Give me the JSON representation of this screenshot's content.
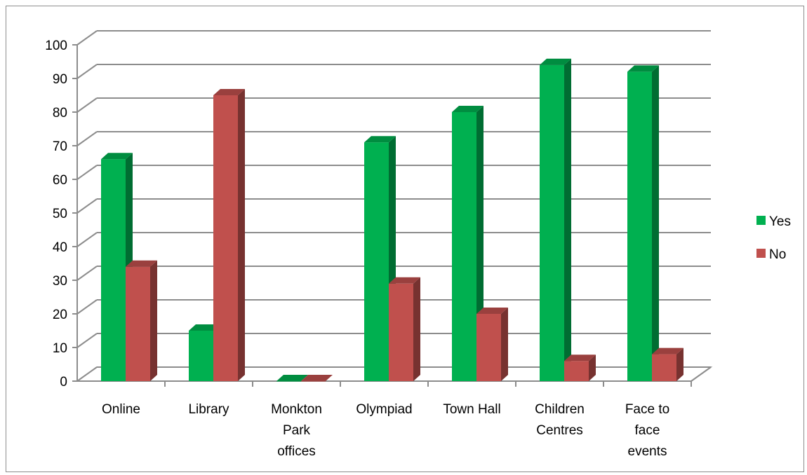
{
  "chart_data": {
    "type": "bar",
    "title": "",
    "xlabel": "",
    "ylabel": "",
    "categories": [
      "Online",
      "Library",
      "Monkton Park offices",
      "Olympiad",
      "Town Hall",
      "Children Centres",
      "Face to face events"
    ],
    "category_label_lines": [
      [
        "Online"
      ],
      [
        "Library"
      ],
      [
        "Monkton",
        "Park",
        "offices"
      ],
      [
        "Olympiad"
      ],
      [
        "Town Hall"
      ],
      [
        "Children",
        "Centres"
      ],
      [
        "Face to",
        "face",
        "events"
      ]
    ],
    "series": [
      {
        "name": "Yes",
        "values": [
          66,
          15,
          0,
          71,
          80,
          94,
          92
        ],
        "color": "#00b050"
      },
      {
        "name": "No",
        "values": [
          34,
          85,
          0,
          29,
          20,
          6,
          8
        ],
        "color": "#c0504d"
      }
    ],
    "ylim": [
      0,
      100
    ],
    "yticks": [
      0,
      10,
      20,
      30,
      40,
      50,
      60,
      70,
      80,
      90,
      100
    ],
    "grid": true,
    "style": "3d-clustered-column",
    "legend_position": "right"
  }
}
